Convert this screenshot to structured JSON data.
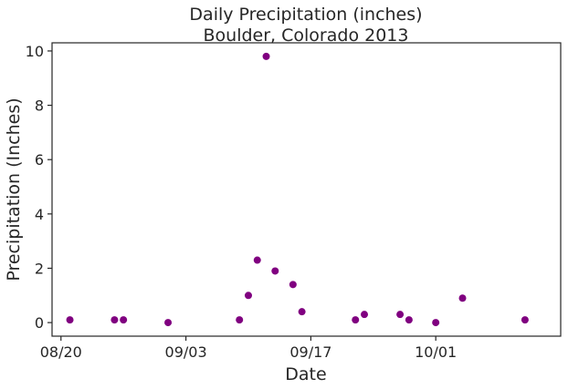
{
  "chart_data": {
    "type": "scatter",
    "title": "Daily Precipitation (inches)",
    "subtitle": "Boulder, Colorado 2013",
    "xlabel": "Date",
    "ylabel": "Precipitation (Inches)",
    "x_tick_labels": [
      "08/20",
      "09/03",
      "09/17",
      "10/01"
    ],
    "y_tick_labels": [
      "0",
      "2",
      "4",
      "6",
      "8",
      "10"
    ],
    "x_ticks": [
      "2013-08-20",
      "2013-09-03",
      "2013-09-17",
      "2013-10-01"
    ],
    "y_ticks": [
      0,
      2,
      4,
      6,
      8,
      10
    ],
    "xlim": [
      "2013-08-19",
      "2013-10-15"
    ],
    "ylim": [
      -0.5,
      10.3
    ],
    "grid": false,
    "marker_color": "#800080",
    "points": [
      {
        "x": "2013-08-21",
        "y": 0.1
      },
      {
        "x": "2013-08-26",
        "y": 0.1
      },
      {
        "x": "2013-08-27",
        "y": 0.1
      },
      {
        "x": "2013-09-01",
        "y": 0.0
      },
      {
        "x": "2013-09-09",
        "y": 0.1
      },
      {
        "x": "2013-09-10",
        "y": 1.0
      },
      {
        "x": "2013-09-11",
        "y": 2.3
      },
      {
        "x": "2013-09-12",
        "y": 9.8
      },
      {
        "x": "2013-09-13",
        "y": 1.9
      },
      {
        "x": "2013-09-15",
        "y": 1.4
      },
      {
        "x": "2013-09-16",
        "y": 0.4
      },
      {
        "x": "2013-09-22",
        "y": 0.1
      },
      {
        "x": "2013-09-23",
        "y": 0.3
      },
      {
        "x": "2013-09-27",
        "y": 0.3
      },
      {
        "x": "2013-09-28",
        "y": 0.1
      },
      {
        "x": "2013-10-01",
        "y": 0.0
      },
      {
        "x": "2013-10-04",
        "y": 0.9
      },
      {
        "x": "2013-10-11",
        "y": 0.1
      }
    ]
  }
}
